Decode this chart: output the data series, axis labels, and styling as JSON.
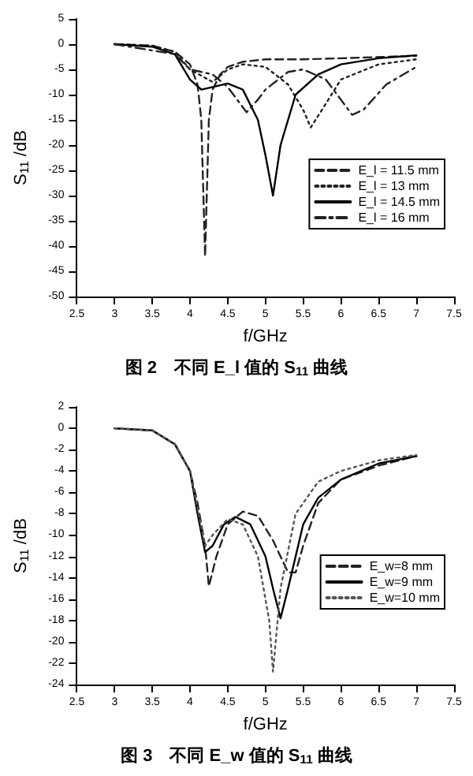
{
  "chart_data": [
    {
      "type": "line",
      "title": "图 2　不同 E_l 值的 S$_{11}$ 曲线",
      "xlabel": "f/GHz",
      "ylabel": "S$_{11}$ /dB",
      "xlim": [
        2.5,
        7.5
      ],
      "xticks": [
        2.5,
        3,
        3.5,
        4,
        4.5,
        5,
        5.5,
        6,
        6.5,
        7,
        7.5
      ],
      "ylim": [
        -50,
        5
      ],
      "yticks": [
        -50,
        -45,
        -40,
        -35,
        -30,
        -25,
        -20,
        -15,
        -10,
        -5,
        0,
        5
      ],
      "grid": false,
      "legend": "right",
      "marker": "none",
      "series": [
        {
          "name": "E_l = 11.5 mm",
          "color": "#222222",
          "line_style": "dashed",
          "x": [
            3,
            3.5,
            3.8,
            4,
            4.1,
            4.15,
            4.2,
            4.25,
            4.3,
            4.4,
            4.5,
            4.7,
            5,
            5.5,
            6,
            7
          ],
          "values": [
            0,
            -0.3,
            -1.5,
            -4,
            -8,
            -15,
            -42,
            -15,
            -9,
            -6,
            -4.5,
            -3.5,
            -3,
            -3,
            -2.8,
            -2.3
          ]
        },
        {
          "name": "E_l = 13 mm",
          "color": "#222222",
          "line_style": "dotted",
          "x": [
            3,
            3.5,
            3.8,
            4,
            4.3,
            4.5,
            4.7,
            5,
            5.3,
            5.5,
            5.6,
            5.75,
            6,
            6.5,
            7
          ],
          "values": [
            0,
            -0.3,
            -1.5,
            -5,
            -7.5,
            -5,
            -4,
            -4.5,
            -8,
            -13,
            -16.5,
            -13,
            -7,
            -4,
            -3
          ]
        },
        {
          "name": "E_l = 14.5 mm",
          "color": "#000000",
          "line_style": "solid",
          "x": [
            3,
            3.5,
            3.8,
            4,
            4.15,
            4.3,
            4.5,
            4.7,
            4.9,
            5,
            5.1,
            5.2,
            5.4,
            5.7,
            6,
            6.5,
            7
          ],
          "values": [
            0,
            -0.5,
            -2,
            -7,
            -9,
            -8.5,
            -7.8,
            -9,
            -15,
            -22,
            -30,
            -20,
            -10,
            -6,
            -4,
            -2.8,
            -2.2
          ]
        },
        {
          "name": "E_l = 16 mm",
          "color": "#222222",
          "line_style": "dashdot",
          "x": [
            3,
            3.8,
            4,
            4.3,
            4.5,
            4.75,
            4.9,
            5,
            5.3,
            5.5,
            5.8,
            6,
            6.15,
            6.3,
            6.6,
            7
          ],
          "values": [
            0,
            -2,
            -5,
            -6,
            -8.5,
            -13.5,
            -11,
            -9,
            -5.5,
            -5,
            -7,
            -11,
            -14,
            -13,
            -8,
            -4.5
          ]
        }
      ]
    },
    {
      "type": "line",
      "title": "图 3　不同 E_w 值的 S$_{11}$ 曲线",
      "xlabel": "f/GHz",
      "ylabel": "S$_{11}$ /dB",
      "xlim": [
        2.5,
        7.5
      ],
      "xticks": [
        2.5,
        3,
        3.5,
        4,
        4.5,
        5,
        5.5,
        6,
        6.5,
        7,
        7.5
      ],
      "ylim": [
        -24,
        2
      ],
      "yticks": [
        -24,
        -22,
        -20,
        -18,
        -16,
        -14,
        -12,
        -10,
        -8,
        -6,
        -4,
        -2,
        0,
        2
      ],
      "grid": false,
      "legend": "right",
      "marker": "none",
      "series": [
        {
          "name": "E_w=8 mm",
          "color": "#222222",
          "line_style": "dashed",
          "x": [
            3,
            3.5,
            3.8,
            4,
            4.1,
            4.2,
            4.25,
            4.35,
            4.5,
            4.7,
            4.9,
            5.1,
            5.3,
            5.4,
            5.5,
            5.7,
            6,
            6.5,
            7
          ],
          "values": [
            0,
            -0.2,
            -1.5,
            -4,
            -7,
            -11,
            -14.8,
            -12,
            -9,
            -7.8,
            -8.2,
            -10.5,
            -13.5,
            -13.5,
            -11,
            -7,
            -4.8,
            -3.5,
            -2.6
          ]
        },
        {
          "name": "E_w=9 mm",
          "color": "#000000",
          "line_style": "solid",
          "x": [
            3,
            3.5,
            3.8,
            4,
            4.1,
            4.2,
            4.3,
            4.45,
            4.6,
            4.8,
            5,
            5.1,
            5.2,
            5.3,
            5.5,
            5.7,
            6,
            6.5,
            7
          ],
          "values": [
            0,
            -0.2,
            -1.5,
            -4,
            -8,
            -11.6,
            -11,
            -9,
            -8.3,
            -9,
            -12,
            -15,
            -17.8,
            -15,
            -9,
            -6.5,
            -4.8,
            -3.3,
            -2.6
          ]
        },
        {
          "name": "E_w=10 mm",
          "color": "#555555",
          "line_style": "dotted",
          "x": [
            3,
            3.5,
            3.8,
            4,
            4.1,
            4.2,
            4.3,
            4.5,
            4.7,
            4.9,
            5.05,
            5.1,
            5.2,
            5.4,
            5.7,
            6,
            6.5,
            7
          ],
          "values": [
            0,
            -0.2,
            -1.5,
            -4,
            -7.5,
            -11,
            -10,
            -8.5,
            -9,
            -12,
            -18,
            -22.8,
            -15,
            -8,
            -5,
            -4,
            -3,
            -2.5
          ]
        }
      ]
    }
  ]
}
